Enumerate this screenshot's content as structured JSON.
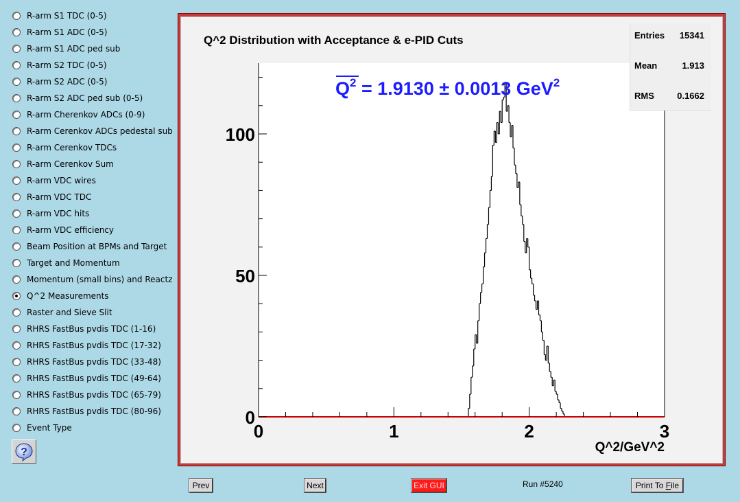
{
  "menu": {
    "items": [
      {
        "label": "R-arm S1 TDC (0-5)",
        "selected": false
      },
      {
        "label": "R-arm S1 ADC (0-5)",
        "selected": false
      },
      {
        "label": "R-arm S1 ADC ped sub",
        "selected": false
      },
      {
        "label": "R-arm S2 TDC (0-5)",
        "selected": false
      },
      {
        "label": "R-arm S2 ADC (0-5)",
        "selected": false
      },
      {
        "label": "R-arm S2 ADC ped sub (0-5)",
        "selected": false
      },
      {
        "label": "R-arm Cherenkov ADCs (0-9)",
        "selected": false
      },
      {
        "label": "R-arm Cerenkov ADCs pedestal sub",
        "selected": false
      },
      {
        "label": "R-arm Cerenkov TDCs",
        "selected": false
      },
      {
        "label": "R-arm Cerenkov Sum",
        "selected": false
      },
      {
        "label": "R-arm VDC wires",
        "selected": false
      },
      {
        "label": "R-arm VDC TDC",
        "selected": false
      },
      {
        "label": "R-arm VDC hits",
        "selected": false
      },
      {
        "label": "R-arm VDC efficiency",
        "selected": false
      },
      {
        "label": "Beam Position at BPMs and Target",
        "selected": false
      },
      {
        "label": "Target and Momentum",
        "selected": false
      },
      {
        "label": "Momentum (small bins) and Reactz",
        "selected": false
      },
      {
        "label": "Q^2 Measurements",
        "selected": true
      },
      {
        "label": "Raster and Sieve Slit",
        "selected": false
      },
      {
        "label": "RHRS FastBus pvdis TDC (1-16)",
        "selected": false
      },
      {
        "label": "RHRS FastBus pvdis TDC (17-32)",
        "selected": false
      },
      {
        "label": "RHRS FastBus pvdis TDC (33-48)",
        "selected": false
      },
      {
        "label": "RHRS FastBus pvdis TDC (49-64)",
        "selected": false
      },
      {
        "label": "RHRS FastBus pvdis TDC (65-79)",
        "selected": false
      },
      {
        "label": "RHRS FastBus pvdis TDC (80-96)",
        "selected": false
      },
      {
        "label": "Event Type",
        "selected": false
      }
    ],
    "help_icon": "question-mark-icon"
  },
  "stats": {
    "entries_label": "Entries",
    "entries_value": "15341",
    "mean_label": "Mean",
    "mean_value": "1.913",
    "rms_label": "RMS",
    "rms_value": "0.1662"
  },
  "buttons": {
    "prev": "Prev",
    "next": "Next",
    "exit": "Exit GUI",
    "print_pre": "Print To ",
    "print_hl": "F",
    "print_post": "ile"
  },
  "run_label": "Run #5240",
  "colors": {
    "background": "#add8e6",
    "frame": "#c23c3c",
    "annotation": "#1c1cff",
    "exit_button": "#ff1a1a"
  },
  "chart_data": {
    "type": "bar",
    "title": "Q^2 Distribution with Acceptance & e-PID Cuts",
    "xlabel": "Q^2/GeV^2",
    "ylabel": "",
    "xlim": [
      0,
      3
    ],
    "ylim": [
      0,
      125
    ],
    "xticks": [
      "0",
      "1",
      "2",
      "3"
    ],
    "yticks": [
      "0",
      "50",
      "100"
    ],
    "annotation": {
      "main": "Q",
      "sup": "2",
      "rest": " = 1.9130 ± 0.0013 GeV",
      "unit_sup": "2"
    },
    "bin_width": 0.01,
    "x": [
      1.54,
      1.55,
      1.56,
      1.57,
      1.58,
      1.59,
      1.6,
      1.61,
      1.62,
      1.63,
      1.64,
      1.65,
      1.66,
      1.67,
      1.68,
      1.69,
      1.7,
      1.71,
      1.72,
      1.73,
      1.74,
      1.75,
      1.76,
      1.77,
      1.78,
      1.79,
      1.8,
      1.81,
      1.82,
      1.83,
      1.84,
      1.85,
      1.86,
      1.87,
      1.88,
      1.89,
      1.9,
      1.91,
      1.92,
      1.93,
      1.94,
      1.95,
      1.96,
      1.97,
      1.98,
      1.99,
      2.0,
      2.01,
      2.02,
      2.03,
      2.04,
      2.05,
      2.06,
      2.07,
      2.08,
      2.09,
      2.1,
      2.11,
      2.12,
      2.13,
      2.14,
      2.15,
      2.16,
      2.17,
      2.18,
      2.19,
      2.2,
      2.21,
      2.22,
      2.23,
      2.24,
      2.25,
      2.26,
      2.27,
      2.28,
      2.29,
      2.3,
      2.31,
      2.32,
      2.33,
      2.34,
      2.35
    ],
    "values": [
      0,
      3,
      8,
      14,
      18,
      24,
      29,
      26,
      34,
      40,
      44,
      47,
      53,
      58,
      63,
      68,
      74,
      80,
      85,
      96,
      101,
      97,
      104,
      100,
      108,
      104,
      112,
      113,
      118,
      108,
      110,
      104,
      99,
      103,
      95,
      89,
      86,
      81,
      83,
      75,
      71,
      68,
      62,
      58,
      63,
      60,
      52,
      49,
      47,
      43,
      41,
      38,
      41,
      36,
      34,
      30,
      27,
      22,
      20,
      25,
      19,
      16,
      14,
      11,
      13,
      9,
      8,
      6,
      5,
      3,
      2,
      1,
      0,
      0,
      0,
      0,
      0,
      0,
      0,
      0,
      0,
      0
    ]
  }
}
